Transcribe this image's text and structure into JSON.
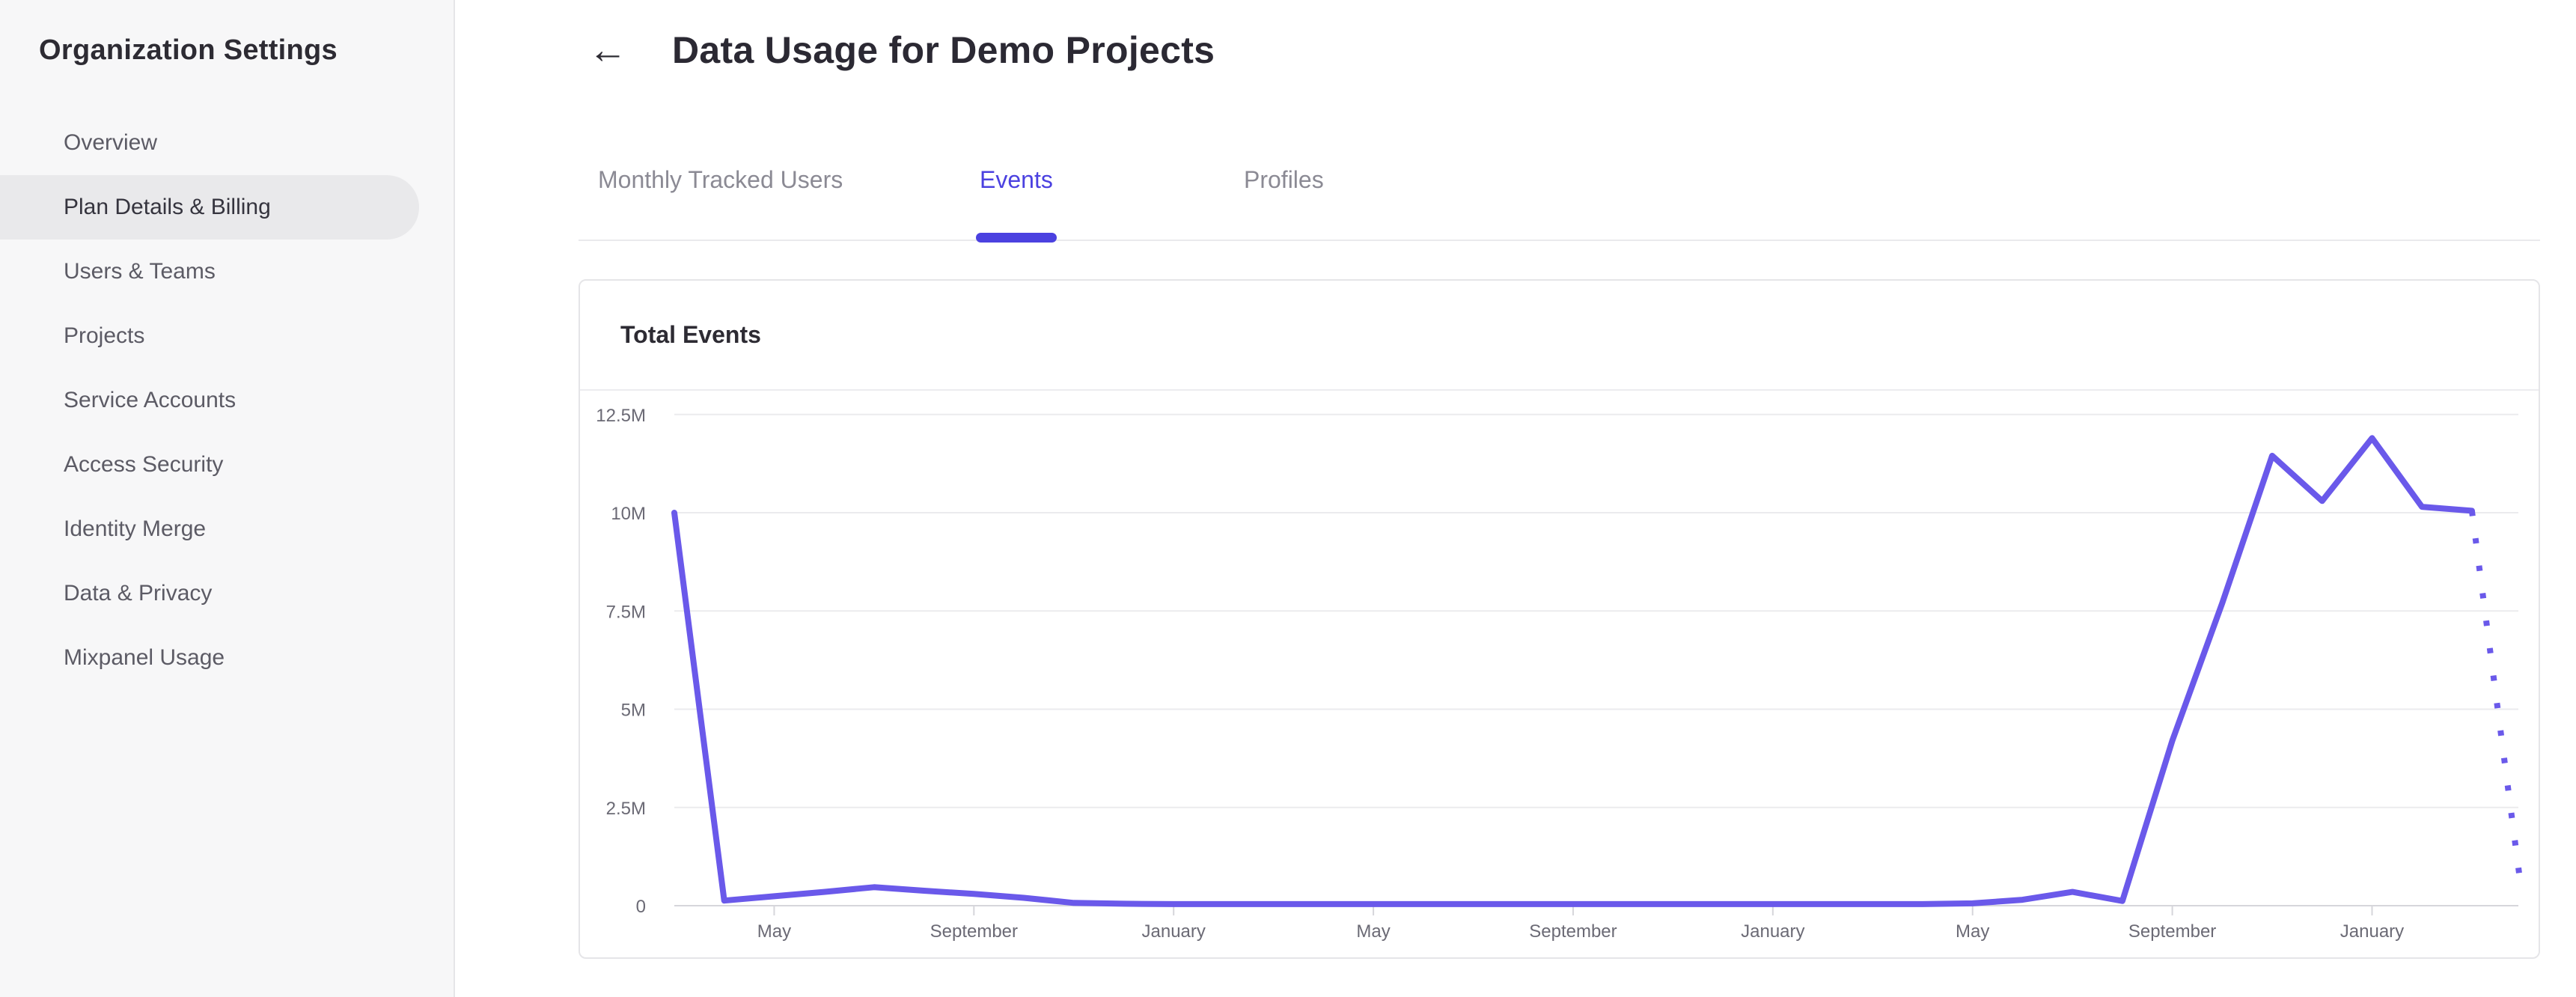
{
  "sidebar": {
    "title": "Organization Settings",
    "items": [
      {
        "label": "Overview",
        "selected": false
      },
      {
        "label": "Plan Details & Billing",
        "selected": true
      },
      {
        "label": "Users & Teams",
        "selected": false
      },
      {
        "label": "Projects",
        "selected": false
      },
      {
        "label": "Service Accounts",
        "selected": false
      },
      {
        "label": "Access Security",
        "selected": false
      },
      {
        "label": "Identity Merge",
        "selected": false
      },
      {
        "label": "Data & Privacy",
        "selected": false
      },
      {
        "label": "Mixpanel Usage",
        "selected": false
      }
    ]
  },
  "header": {
    "back_icon": "←",
    "title": "Data Usage for Demo Projects"
  },
  "tabs": [
    {
      "label": "Monthly Tracked Users",
      "active": false
    },
    {
      "label": "Events",
      "active": true
    },
    {
      "label": "Profiles",
      "active": false
    }
  ],
  "card": {
    "title": "Total Events"
  },
  "colors": {
    "accent_purple": "#4b41e0",
    "line_purple": "#6a59ea",
    "sidebar_bg": "#f7f7f8",
    "selected_pill_bg": "#e9e9eb",
    "gridline": "#ebebee",
    "axis_line": "#d6d6db",
    "axis_text": "#6b6a75"
  },
  "chart_data": {
    "type": "line",
    "title": "Total Events",
    "xlabel": "",
    "ylabel": "",
    "legend": "none",
    "grid": "horizontal",
    "ylim_millions": [
      0,
      13.1
    ],
    "y_tick_labels": [
      "12.5M",
      "10M",
      "7.5M",
      "5M",
      "2.5M",
      "0"
    ],
    "y_tick_values_millions": [
      12.5,
      10,
      7.5,
      5,
      2.5,
      0
    ],
    "x_tick_labels": [
      "May",
      "September",
      "January",
      "May",
      "September",
      "January",
      "May",
      "September",
      "January"
    ],
    "x_tick_indices": [
      2,
      6,
      10,
      14,
      18,
      22,
      26,
      30,
      34
    ],
    "series": [
      {
        "name": "Total Events",
        "values_millions": [
          10,
          0.13,
          0.24,
          0.35,
          0.47,
          0.38,
          0.3,
          0.2,
          0.07,
          0.05,
          0.04,
          0.04,
          0.04,
          0.04,
          0.04,
          0.04,
          0.04,
          0.04,
          0.04,
          0.04,
          0.04,
          0.04,
          0.04,
          0.04,
          0.04,
          0.04,
          0.06,
          0.15,
          0.35,
          0.12,
          4.2,
          7.7,
          11.45,
          10.3,
          11.9,
          10.15,
          10.05,
          0.3
        ],
        "dotted_from_index": 36,
        "dotted_style": "projected"
      }
    ]
  }
}
